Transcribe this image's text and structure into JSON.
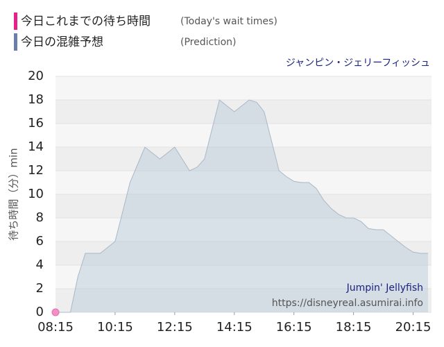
{
  "chart_data": {
    "type": "area",
    "title": "ジャンピン・ジェリーフィッシュ",
    "y_label": "待ち時間（分）min",
    "annotations": [
      "Jumpin' Jellyfish",
      "https://disneyreal.asumirai.info"
    ],
    "xlim": [
      495,
      1252
    ],
    "xticks": [
      {
        "value": 495,
        "label": "08:15"
      },
      {
        "value": 615,
        "label": "10:15"
      },
      {
        "value": 735,
        "label": "12:15"
      },
      {
        "value": 855,
        "label": "14:15"
      },
      {
        "value": 975,
        "label": "16:15"
      },
      {
        "value": 1095,
        "label": "18:15"
      },
      {
        "value": 1215,
        "label": "20:15"
      }
    ],
    "ylim": [
      0,
      20
    ],
    "yticks": [
      0,
      2,
      4,
      6,
      8,
      10,
      12,
      14,
      16,
      18,
      20
    ],
    "grid": true,
    "series": [
      {
        "name": "今日これまでの待ち時間",
        "name_en": "(Today's wait times)",
        "type": "scatter",
        "color": "#f48fc4",
        "legend_color": "#e8208a",
        "x": [
          495
        ],
        "values": [
          0
        ]
      },
      {
        "name": "今日の混雑予想",
        "name_en": "(Prediction)",
        "type": "area",
        "color": "#b4c6d6",
        "legend_color": "#6a7fa8",
        "x": [
          495,
          510,
          525,
          540,
          555,
          570,
          585,
          600,
          615,
          630,
          645,
          660,
          675,
          690,
          705,
          720,
          735,
          750,
          765,
          780,
          795,
          810,
          825,
          840,
          855,
          870,
          885,
          900,
          915,
          930,
          945,
          960,
          975,
          990,
          1005,
          1020,
          1035,
          1050,
          1065,
          1080,
          1095,
          1110,
          1125,
          1140,
          1155,
          1170,
          1185,
          1200,
          1215,
          1230,
          1245
        ],
        "values": [
          0,
          0,
          0,
          3,
          5,
          5,
          5,
          5.5,
          6,
          8.5,
          11,
          12.5,
          14,
          13.5,
          13,
          13.5,
          14,
          13,
          12,
          12.3,
          13,
          15.5,
          18,
          17.5,
          17,
          17.5,
          18,
          17.8,
          17,
          14.5,
          12,
          11.5,
          11.1,
          11,
          11,
          10.5,
          9.5,
          8.8,
          8.3,
          8,
          8,
          7.7,
          7.1,
          7,
          7,
          6.5,
          6,
          5.5,
          5.1,
          5,
          5
        ]
      }
    ]
  }
}
